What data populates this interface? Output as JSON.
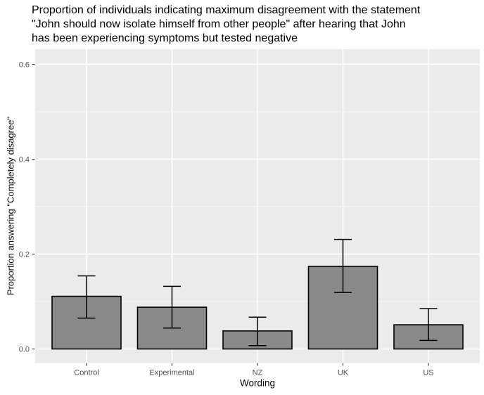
{
  "chart_data": {
    "type": "bar",
    "title_lines": [
      "Proportion of individuals indicating maximum disagreement with the statement",
      "\"John should now isolate himself from other people\" after hearing that John",
      "has been experiencing symptoms but tested negative"
    ],
    "xlabel": "Wording",
    "ylabel": "Proportion answering \"Completely disagree\"",
    "categories": [
      "Control",
      "Experimental",
      "NZ",
      "UK",
      "US"
    ],
    "values": [
      0.111,
      0.088,
      0.038,
      0.174,
      0.051
    ],
    "error_bars": {
      "low": [
        0.065,
        0.044,
        0.007,
        0.119,
        0.018
      ],
      "high": [
        0.154,
        0.132,
        0.067,
        0.231,
        0.085
      ]
    },
    "ytick_values": [
      0.0,
      0.2,
      0.4,
      0.6
    ],
    "ytick_labels": [
      "0.0",
      "0.2",
      "0.4",
      "0.6"
    ],
    "minor_gridline_values": [
      0.1,
      0.3,
      0.5
    ],
    "ylim": [
      -0.03,
      0.63
    ],
    "grid": "horizontal-major-and-minor, vertical-major-at-categories",
    "legend": "none",
    "colors": {
      "bar_fill": "#898989",
      "bar_stroke": "#000000",
      "error_bar": "#000000",
      "panel_background": "#EBEBEB",
      "gridline": "#FFFFFF",
      "axis_text": "#4D4D4D",
      "tick_mark": "#333333",
      "title_text": "#000000",
      "page_background": "#FFFFFF"
    }
  }
}
